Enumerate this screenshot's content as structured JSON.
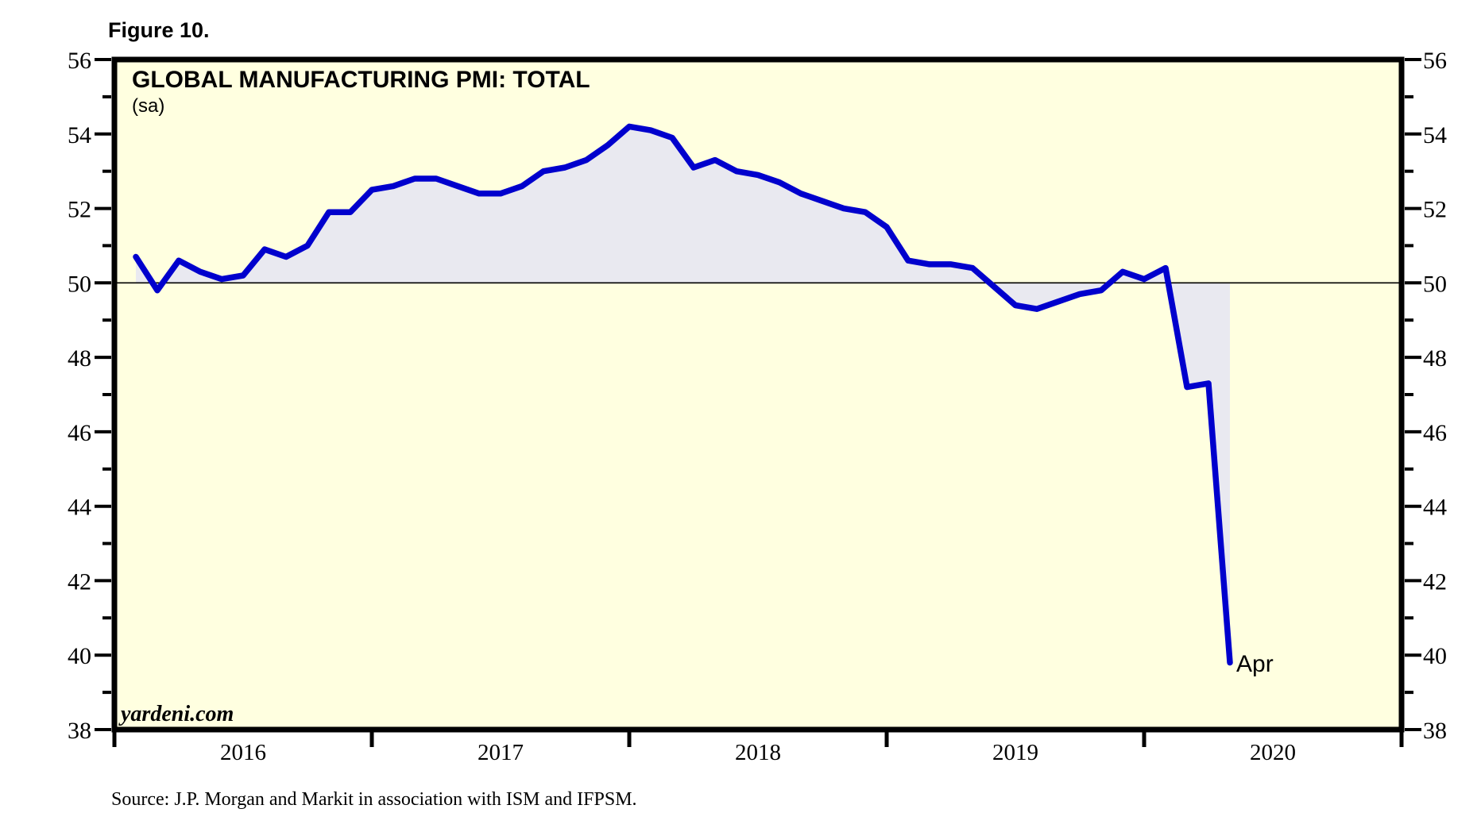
{
  "figure_label": "Figure 10.",
  "chart_data": {
    "type": "line",
    "title": "GLOBAL MANUFACTURING PMI: TOTAL",
    "subtitle": "(sa)",
    "watermark": "yardeni.com",
    "source_note": "Source:  J.P. Morgan and Markit in association with ISM and IFPSM.",
    "end_point_label": "Apr",
    "grid": "off",
    "legend": "none",
    "baseline": 50,
    "x_axis": {
      "start_month": "Jan 2016",
      "end_month": "Apr 2020",
      "year_labels": [
        "2016",
        "2017",
        "2018",
        "2019",
        "2020"
      ]
    },
    "y_axis": {
      "min": 38,
      "max": 56,
      "major_tick_step": 2,
      "minor_tick_step": 1,
      "major_ticks": [
        38,
        40,
        42,
        44,
        46,
        48,
        50,
        52,
        54,
        56
      ],
      "sides": "both"
    },
    "series": [
      {
        "name": "Global Manufacturing PMI (sa)",
        "frequency": "monthly",
        "values": [
          50.7,
          49.8,
          50.6,
          50.3,
          50.1,
          50.2,
          50.9,
          50.7,
          51.0,
          51.9,
          51.9,
          52.5,
          52.6,
          52.8,
          52.8,
          52.6,
          52.4,
          52.4,
          52.6,
          53.0,
          53.1,
          53.3,
          53.7,
          54.2,
          54.1,
          53.9,
          53.1,
          53.3,
          53.0,
          52.9,
          52.7,
          52.4,
          52.2,
          52.0,
          51.9,
          51.5,
          50.6,
          50.5,
          50.5,
          50.4,
          49.9,
          49.4,
          49.3,
          49.5,
          49.7,
          49.8,
          50.3,
          50.1,
          50.4,
          47.2,
          47.3,
          39.8
        ]
      }
    ],
    "colors": {
      "line": "#0000cd",
      "fill_area": "#e9e9f0",
      "plot_background": "#ffffe0",
      "end_label_text": "#1a1acd",
      "axis": "#000000",
      "page_background": "#ffffff"
    }
  }
}
